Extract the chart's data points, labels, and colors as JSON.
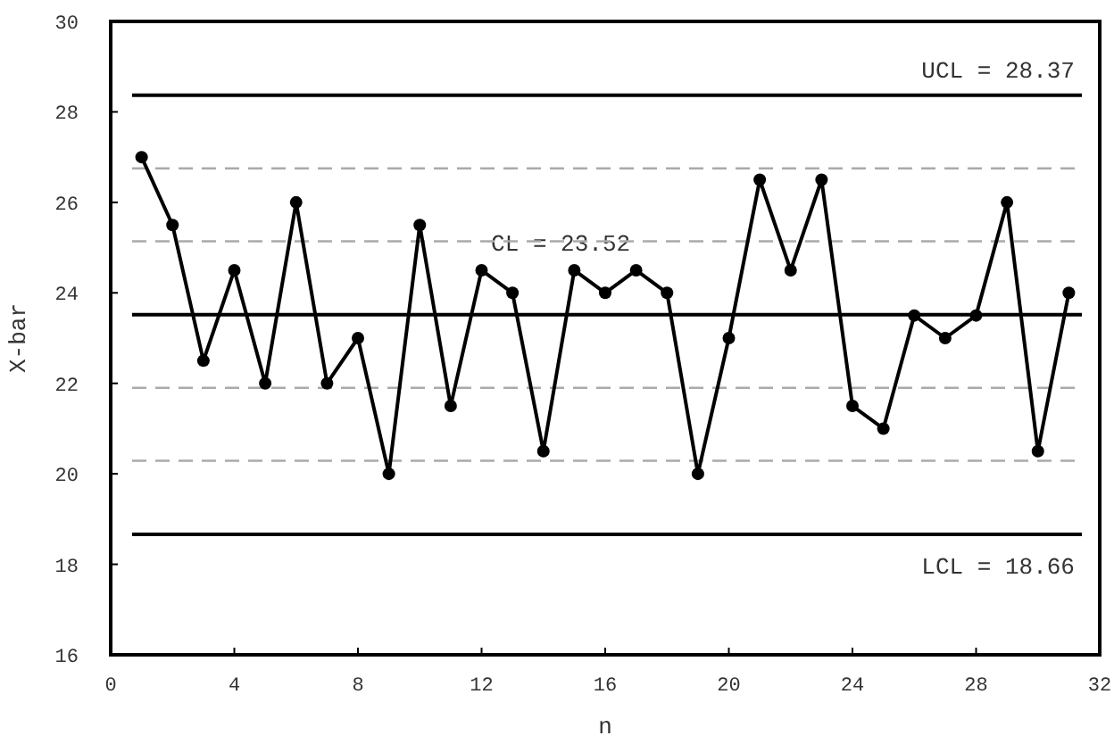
{
  "chart_data": {
    "type": "line",
    "xlabel": "n",
    "ylabel": "X-bar",
    "x": [
      1,
      2,
      3,
      4,
      5,
      6,
      7,
      8,
      9,
      10,
      11,
      12,
      13,
      14,
      15,
      16,
      17,
      18,
      19,
      20,
      21,
      22,
      23,
      24,
      25,
      26,
      27,
      28,
      29,
      30,
      31
    ],
    "series": [
      {
        "color": "#000000",
        "values": [
          27,
          25.5,
          22.5,
          24.5,
          22,
          26,
          22,
          23,
          20,
          25.5,
          21.5,
          24.5,
          24,
          20.5,
          24.5,
          24,
          24.5,
          24,
          20,
          23,
          26.5,
          24.5,
          26.5,
          21.5,
          21,
          23.5,
          23,
          23.5,
          26,
          20.5,
          24
        ]
      }
    ],
    "xlim": [
      0,
      32
    ],
    "xticks": [
      0,
      4,
      8,
      12,
      16,
      20,
      24,
      28,
      32
    ],
    "ylim": [
      16,
      30
    ],
    "yticks": [
      16,
      18,
      20,
      22,
      24,
      26,
      28,
      30
    ],
    "grid": false,
    "marker": "circle",
    "line_style": "solid",
    "ref_lines": [
      {
        "axis": "y",
        "value": 28.37,
        "label": "UCL = 28.37",
        "color": "#000000",
        "line_style": "solid"
      },
      {
        "axis": "y",
        "value": 23.52,
        "label": "CL = 23.52",
        "color": "#000000",
        "line_style": "solid"
      },
      {
        "axis": "y",
        "value": 18.66,
        "label": "LCL = 18.66",
        "color": "#000000",
        "line_style": "solid"
      },
      {
        "axis": "y",
        "value": 26.75,
        "color": "#aaaaaa",
        "line_style": "dashed"
      },
      {
        "axis": "y",
        "value": 25.14,
        "color": "#aaaaaa",
        "line_style": "dashed"
      },
      {
        "axis": "y",
        "value": 21.9,
        "color": "#aaaaaa",
        "line_style": "dashed"
      },
      {
        "axis": "y",
        "value": 20.29,
        "color": "#aaaaaa",
        "line_style": "dashed"
      }
    ]
  }
}
